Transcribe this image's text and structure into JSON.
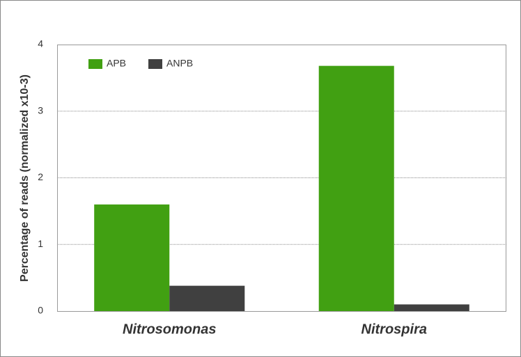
{
  "chart_data": {
    "type": "bar",
    "categories": [
      "Nitrosomonas",
      "Nitrospira"
    ],
    "series": [
      {
        "name": "APB",
        "color": "#41a012",
        "values": [
          1.6,
          3.68
        ]
      },
      {
        "name": "ANPB",
        "color": "#404040",
        "values": [
          0.38,
          0.1
        ]
      }
    ],
    "y_label": "Percentage of reads (normalized x10-3)",
    "ylim": [
      0,
      4
    ],
    "yticks": [
      0,
      1,
      2,
      3,
      4
    ],
    "grid": true,
    "legend": "top-left"
  }
}
